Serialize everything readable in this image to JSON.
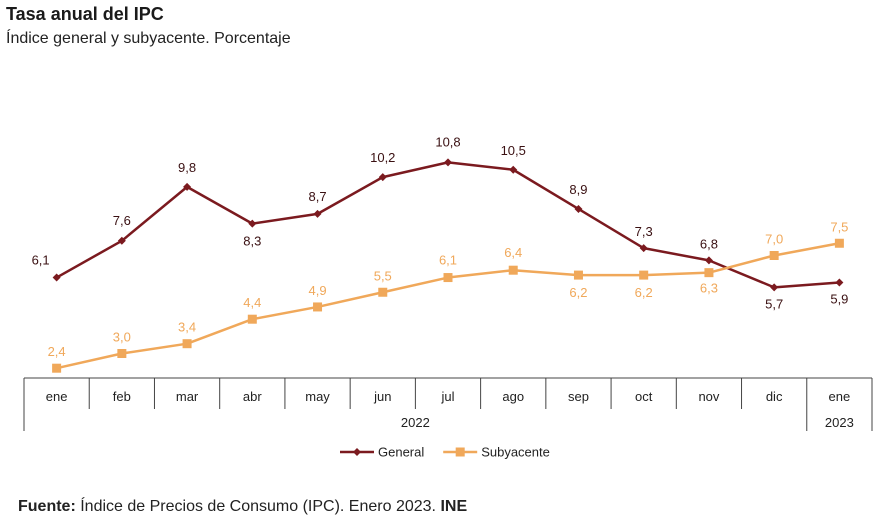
{
  "title": "Tasa anual del IPC",
  "subtitle": "Índice general y subyacente. Porcentaje",
  "footer": {
    "label": "Fuente:",
    "text": "Índice de Precios de Consumo (IPC). Enero 2023.",
    "org": "INE"
  },
  "chart_data": {
    "type": "line",
    "categories": [
      "ene",
      "feb",
      "mar",
      "abr",
      "may",
      "jun",
      "jul",
      "ago",
      "sep",
      "oct",
      "nov",
      "dic",
      "ene"
    ],
    "year_labels": [
      {
        "label": "2022",
        "span": [
          0,
          11
        ]
      },
      {
        "label": "2023",
        "span": [
          12,
          12
        ]
      }
    ],
    "series": [
      {
        "name": "General",
        "color": "#7b1a1f",
        "marker": "diamond",
        "values": [
          6.1,
          7.6,
          9.8,
          8.3,
          8.7,
          10.2,
          10.8,
          10.5,
          8.9,
          7.3,
          6.8,
          5.7,
          5.9
        ],
        "labels": [
          "6,1",
          "7,6",
          "9,8",
          "8,3",
          "8,7",
          "10,2",
          "10,8",
          "10,5",
          "8,9",
          "7,3",
          "6,8",
          "5,7",
          "5,9"
        ]
      },
      {
        "name": "Subyacente",
        "color": "#f0a85a",
        "marker": "square",
        "values": [
          2.4,
          3.0,
          3.4,
          4.4,
          4.9,
          5.5,
          6.1,
          6.4,
          6.2,
          6.2,
          6.3,
          7.0,
          7.5
        ],
        "labels": [
          "2,4",
          "3,0",
          "3,4",
          "4,4",
          "4,9",
          "5,5",
          "6,1",
          "6,4",
          "6,2",
          "6,2",
          "6,3",
          "7,0",
          "7,5"
        ]
      }
    ],
    "legend_position": "bottom",
    "grid": false
  }
}
